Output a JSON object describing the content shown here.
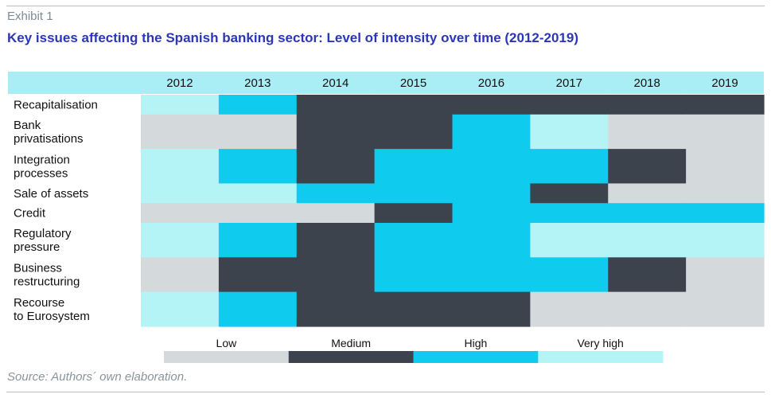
{
  "header": {
    "exhibit": "Exhibit 1",
    "title": "Key issues affecting the Spanish banking sector: Level of intensity over time (2012-2019)"
  },
  "footer": {
    "source": "Source: Authors´ own elaboration."
  },
  "colors": {
    "header_band": "#a9eef4",
    "text": "#111111",
    "levels": {
      "Low": "#d4d9db",
      "Medium": "#3c434d",
      "High": "#0fcbee",
      "Very high": "#b4f4f6"
    }
  },
  "chart_data": {
    "type": "heatmap",
    "title": "Key issues affecting the Spanish banking sector: Level of intensity over time (2012-2019)",
    "columns": [
      "2012",
      "2013",
      "2014",
      "2015",
      "2016",
      "2017",
      "2018",
      "2019"
    ],
    "rows": [
      {
        "label": [
          "Recapitalisation"
        ],
        "values": [
          "Very high",
          "High",
          "Medium",
          "Medium",
          "Medium",
          "Medium",
          "Medium",
          "Medium"
        ]
      },
      {
        "label": [
          "Bank",
          "privatisations"
        ],
        "values": [
          "Low",
          "Low",
          "Medium",
          "Medium",
          "High",
          "Very high",
          "Low",
          "Low"
        ]
      },
      {
        "label": [
          "Integration",
          "processes"
        ],
        "values": [
          "Very high",
          "High",
          "Medium",
          "High",
          "High",
          "High",
          "Medium",
          "Low"
        ]
      },
      {
        "label": [
          "Sale of assets"
        ],
        "values": [
          "Very high",
          "Very high",
          "High",
          "High",
          "High",
          "Medium",
          "Low",
          "Low"
        ]
      },
      {
        "label": [
          "Credit"
        ],
        "values": [
          "Low",
          "Low",
          "Low",
          "Medium",
          "High",
          "High",
          "High",
          "High"
        ]
      },
      {
        "label": [
          "Regulatory",
          "pressure"
        ],
        "values": [
          "Very high",
          "High",
          "Medium",
          "High",
          "High",
          "Very high",
          "Very high",
          "Very high"
        ]
      },
      {
        "label": [
          "Business",
          "restructuring"
        ],
        "values": [
          "Low",
          "Medium",
          "Medium",
          "High",
          "High",
          "High",
          "Medium",
          "Low"
        ]
      },
      {
        "label": [
          "Recourse",
          "to Eurosystem"
        ],
        "values": [
          "Very high",
          "High",
          "Medium",
          "Medium",
          "Medium",
          "Low",
          "Low",
          "Low"
        ]
      }
    ],
    "legend": [
      "Low",
      "Medium",
      "High",
      "Very high"
    ]
  }
}
